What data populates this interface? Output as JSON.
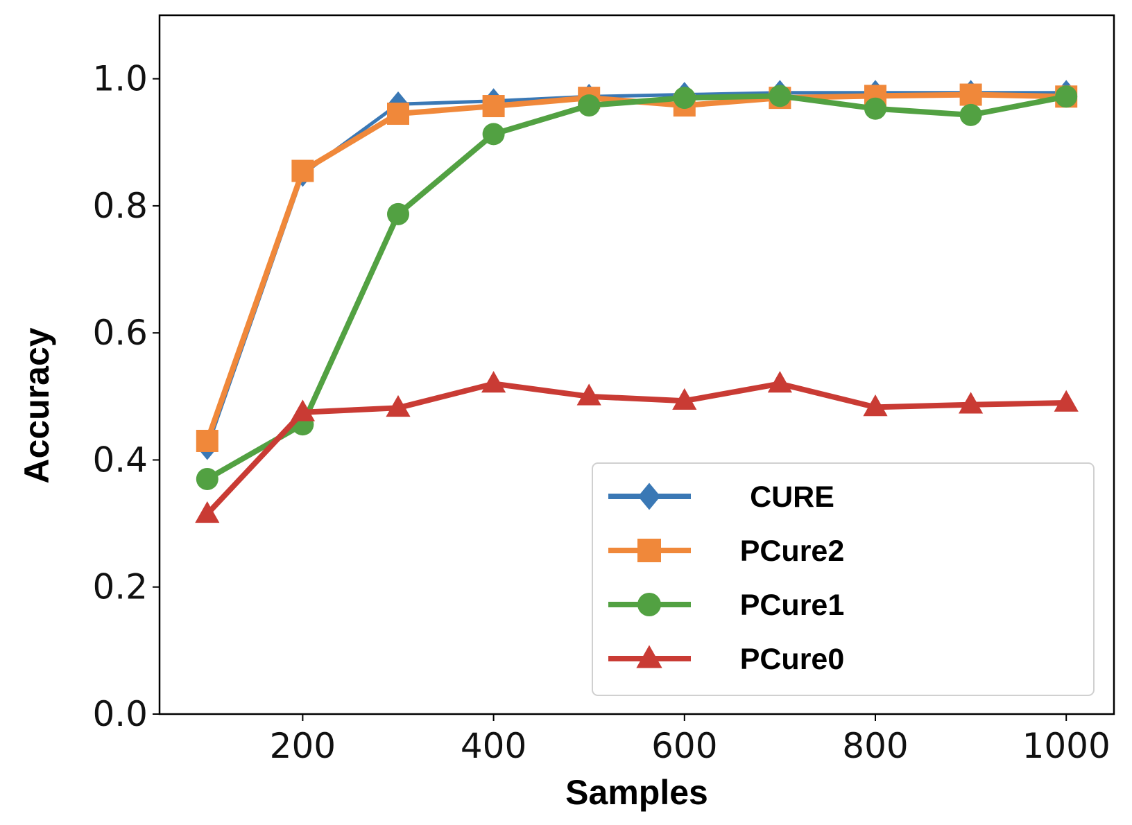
{
  "chart_data": {
    "type": "line",
    "title": "",
    "xlabel": "Samples",
    "ylabel": "Accuracy",
    "x": [
      100,
      200,
      300,
      400,
      500,
      600,
      700,
      800,
      900,
      1000
    ],
    "xlim": [
      50,
      1050
    ],
    "ylim": [
      0.0,
      1.1
    ],
    "xticks": [
      200,
      400,
      600,
      800,
      1000
    ],
    "xtick_labels": [
      "200",
      "400",
      "600",
      "800",
      "1000"
    ],
    "yticks": [
      0.0,
      0.2,
      0.4,
      0.6,
      0.8,
      1.0
    ],
    "ytick_labels": [
      "0.0",
      "0.2",
      "0.4",
      "0.6",
      "0.8",
      "1.0"
    ],
    "grid": false,
    "legend_position": "bottom-right",
    "series": [
      {
        "name": "CURE",
        "color": "#3a78b5",
        "marker": "diamond",
        "values": [
          0.42,
          0.85,
          0.96,
          0.965,
          0.972,
          0.975,
          0.978,
          0.978,
          0.978,
          0.978
        ]
      },
      {
        "name": "PCure2",
        "color": "#f0883a",
        "marker": "square",
        "values": [
          0.43,
          0.855,
          0.945,
          0.957,
          0.97,
          0.958,
          0.97,
          0.973,
          0.975,
          0.972
        ]
      },
      {
        "name": "PCure1",
        "color": "#52a142",
        "marker": "circle",
        "values": [
          0.37,
          0.456,
          0.787,
          0.913,
          0.958,
          0.97,
          0.973,
          0.953,
          0.943,
          0.972
        ]
      },
      {
        "name": "PCure0",
        "color": "#c93b34",
        "marker": "triangle",
        "values": [
          0.315,
          0.475,
          0.482,
          0.52,
          0.5,
          0.493,
          0.52,
          0.483,
          0.487,
          0.49
        ]
      }
    ]
  }
}
